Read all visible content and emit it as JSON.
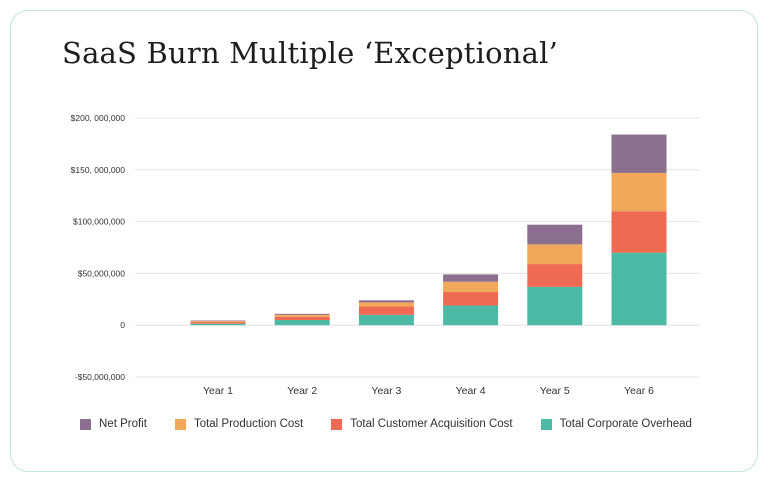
{
  "title": "SaaS Burn Multiple ‘Exceptional’",
  "colors": {
    "net_profit": "#8c6e8e",
    "total_production_cost": "#f2a85a",
    "total_customer_acquisition_cost": "#ee6a52",
    "total_corporate_overhead": "#4dbaa5",
    "gridline": "#e4e4e4",
    "card_border": "#bfe6dd"
  },
  "chart_data": {
    "type": "bar",
    "stacked": true,
    "categories": [
      "Year 1",
      "Year 2",
      "Year 3",
      "Year 4",
      "Year 5",
      "Year 6"
    ],
    "series": [
      {
        "name": "Total Corporate Overhead",
        "color_key": "total_corporate_overhead",
        "values": [
          1500000,
          5000000,
          10000000,
          19000000,
          37000000,
          70000000
        ]
      },
      {
        "name": "Total Customer Acquisition Cost",
        "color_key": "total_customer_acquisition_cost",
        "values": [
          1500000,
          3000000,
          8000000,
          13000000,
          22000000,
          40000000
        ]
      },
      {
        "name": "Total Production Cost",
        "color_key": "total_production_cost",
        "values": [
          1000000,
          2000000,
          4000000,
          10000000,
          19000000,
          37000000
        ]
      },
      {
        "name": "Net Profit",
        "color_key": "net_profit",
        "values": [
          500000,
          1000000,
          2000000,
          7000000,
          19000000,
          37000000
        ]
      }
    ],
    "y_ticks": [
      {
        "value": 200000000,
        "label": "$200, 000,000"
      },
      {
        "value": 150000000,
        "label": "$150, 000,000"
      },
      {
        "value": 100000000,
        "label": "$100,000,000"
      },
      {
        "value": 50000000,
        "label": "$50,000,000"
      },
      {
        "value": 0,
        "label": "0"
      },
      {
        "value": -50000000,
        "label": "-$50,000,000"
      }
    ],
    "ylim": [
      -50000000,
      200000000
    ],
    "grid": true,
    "legend_position": "bottom",
    "legend_order": [
      "Net Profit",
      "Total Production Cost",
      "Total Customer Acquisition Cost",
      "Total Corporate Overhead"
    ]
  }
}
